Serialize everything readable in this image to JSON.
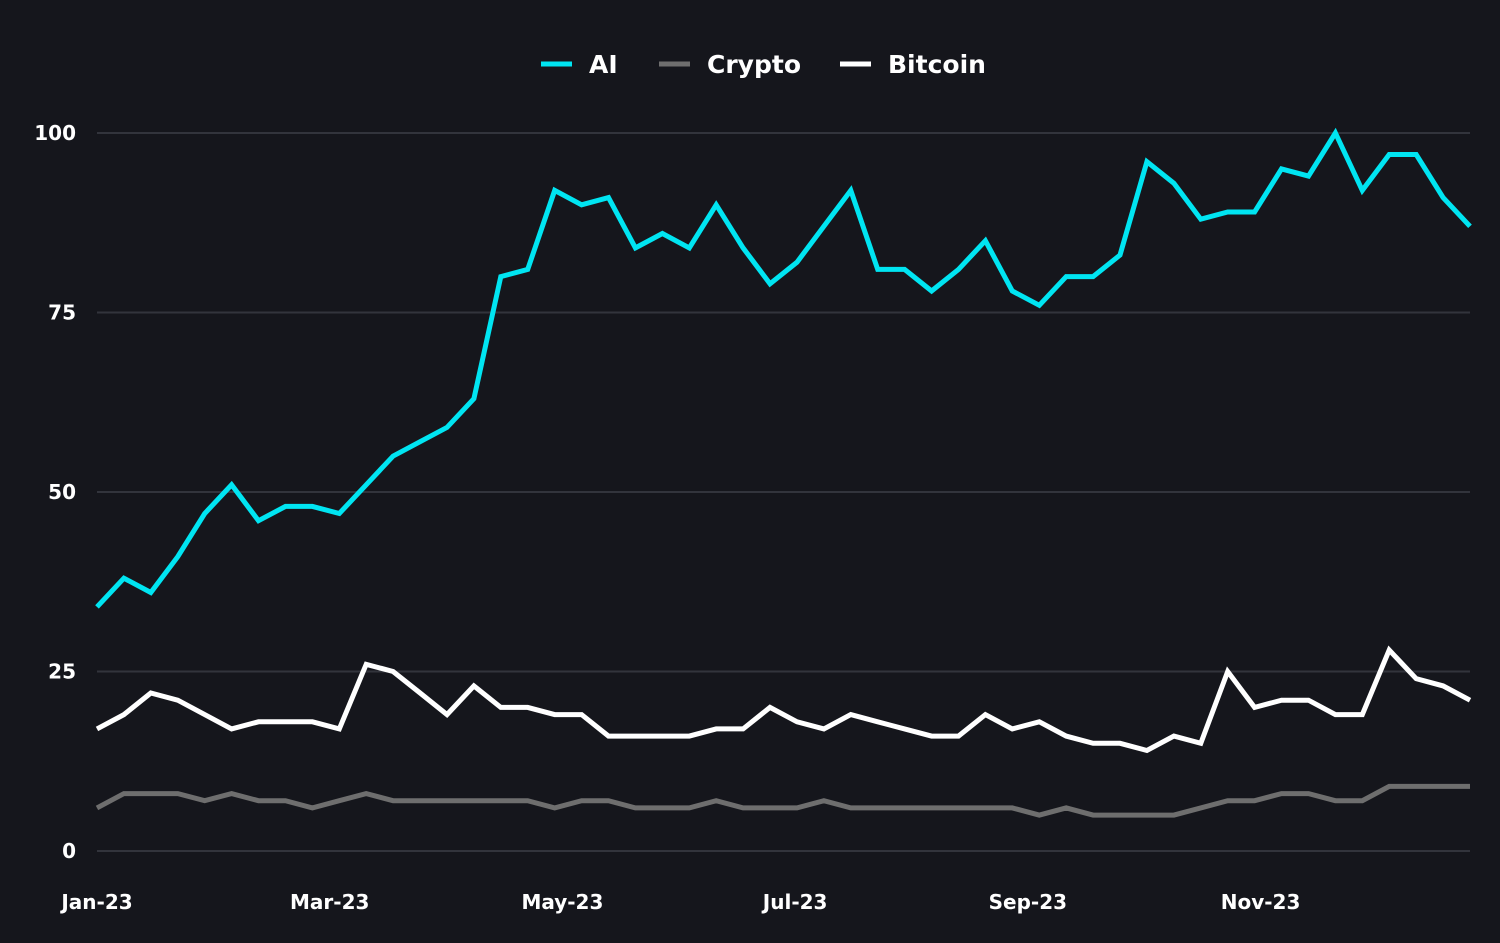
{
  "chart_data": {
    "type": "line",
    "title": "",
    "xlabel": "",
    "ylabel": "",
    "ylim": [
      0,
      100
    ],
    "y_ticks": [
      0,
      25,
      50,
      75,
      100
    ],
    "x_tick_labels": [
      "Jan-23",
      "Mar-23",
      "May-23",
      "Jul-23",
      "Sep-23",
      "Nov-23"
    ],
    "grid": "horizontal",
    "legend_placement": "top-center",
    "series": [
      {
        "name": "AI",
        "color": "#00e5f2",
        "values": [
          34,
          38,
          36,
          41,
          47,
          51,
          46,
          48,
          48,
          47,
          51,
          55,
          57,
          59,
          63,
          80,
          81,
          92,
          90,
          91,
          84,
          86,
          84,
          90,
          84,
          79,
          82,
          87,
          92,
          81,
          81,
          78,
          81,
          85,
          78,
          76,
          80,
          80,
          83,
          96,
          93,
          88,
          89,
          89,
          95,
          94,
          100,
          92,
          97,
          97,
          91,
          87
        ]
      },
      {
        "name": "Crypto",
        "color": "#6e6e6e",
        "values": [
          6,
          8,
          8,
          8,
          7,
          8,
          7,
          7,
          6,
          7,
          8,
          7,
          7,
          7,
          7,
          7,
          7,
          6,
          7,
          7,
          6,
          6,
          6,
          7,
          6,
          6,
          6,
          7,
          6,
          6,
          6,
          6,
          6,
          6,
          6,
          5,
          6,
          5,
          5,
          5,
          5,
          6,
          7,
          7,
          8,
          8,
          7,
          7,
          9,
          9,
          9,
          9
        ]
      },
      {
        "name": "Bitcoin",
        "color": "#ffffff",
        "values": [
          17,
          19,
          22,
          21,
          19,
          17,
          18,
          18,
          18,
          17,
          26,
          25,
          22,
          19,
          23,
          20,
          20,
          19,
          19,
          16,
          16,
          16,
          16,
          17,
          17,
          20,
          18,
          17,
          19,
          18,
          17,
          16,
          16,
          19,
          17,
          18,
          16,
          15,
          15,
          14,
          16,
          15,
          25,
          20,
          21,
          21,
          19,
          19,
          28,
          24,
          23,
          21
        ]
      }
    ]
  }
}
